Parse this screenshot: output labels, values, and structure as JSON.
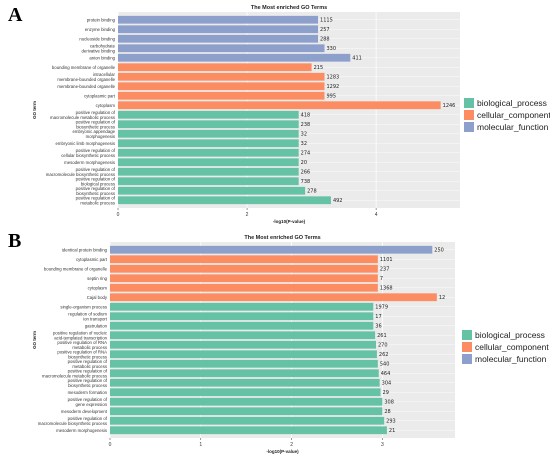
{
  "colors": {
    "biological_process": "#66c2a5",
    "cellular_component": "#fc8d62",
    "molecular_function": "#8da0cb",
    "panel_bg": "#ebebeb",
    "grid": "#ffffff"
  },
  "chart_data": [
    {
      "panel_letter": "A",
      "type": "bar",
      "orientation": "horizontal",
      "title": "The Most enriched GO Terms",
      "xlabel": "-log10(P-value)",
      "ylabel": "GO term",
      "xlim": [
        0,
        5.3
      ],
      "xticks": [
        0,
        2,
        4
      ],
      "grid": true,
      "legend_position": "right",
      "legend": [
        {
          "name": "biological_process",
          "color": "#66c2a5"
        },
        {
          "name": "cellular_component",
          "color": "#fc8d62"
        },
        {
          "name": "molecular_function",
          "color": "#8da0cb"
        }
      ],
      "bars": [
        {
          "term": "protein binding",
          "value": 3.1,
          "count": "1115",
          "category": "molecular_function"
        },
        {
          "term": "enzyme binding",
          "value": 3.1,
          "count": "257",
          "category": "molecular_function"
        },
        {
          "term": "nucleoside binding",
          "value": 3.1,
          "count": "288",
          "category": "molecular_function"
        },
        {
          "term": "carbohydrate derivative binding",
          "value": 3.2,
          "count": "330",
          "category": "molecular_function"
        },
        {
          "term": "anion binding",
          "value": 3.6,
          "count": "411",
          "category": "molecular_function"
        },
        {
          "term": "bounding membrane of organelle",
          "value": 3.0,
          "count": "215",
          "category": "cellular_component"
        },
        {
          "term": "intracellular membrane-bounded organelle",
          "value": 3.2,
          "count": "1283",
          "category": "cellular_component"
        },
        {
          "term": "membrane-bounded organelle",
          "value": 3.2,
          "count": "1292",
          "category": "cellular_component"
        },
        {
          "term": "cytoplasmic part",
          "value": 3.2,
          "count": "995",
          "category": "cellular_component"
        },
        {
          "term": "cytoplasm",
          "value": 5.0,
          "count": "1246",
          "category": "cellular_component"
        },
        {
          "term": "positive regulation of macromolecule metabolic process",
          "value": 2.8,
          "count": "418",
          "category": "biological_process"
        },
        {
          "term": "positive regulation of biosynthetic process",
          "value": 2.8,
          "count": "238",
          "category": "biological_process"
        },
        {
          "term": "embryonic appendage morphogenesis",
          "value": 2.8,
          "count": "32",
          "category": "biological_process"
        },
        {
          "term": "embryonic limb morphogenesis",
          "value": 2.8,
          "count": "32",
          "category": "biological_process"
        },
        {
          "term": "positive regulation of cellular biosynthetic process",
          "value": 2.8,
          "count": "274",
          "category": "biological_process"
        },
        {
          "term": "mesoderm morphogenesis",
          "value": 2.8,
          "count": "20",
          "category": "biological_process"
        },
        {
          "term": "positive regulation of macromolecule biosynthetic process",
          "value": 2.8,
          "count": "266",
          "category": "biological_process"
        },
        {
          "term": "positive regulation of biological process",
          "value": 2.8,
          "count": "738",
          "category": "biological_process"
        },
        {
          "term": "positive regulation of biosynthetic process",
          "value": 2.9,
          "count": "278",
          "category": "biological_process"
        },
        {
          "term": "positive regulation of metabolic process",
          "value": 3.3,
          "count": "492",
          "category": "biological_process"
        }
      ]
    },
    {
      "panel_letter": "B",
      "type": "bar",
      "orientation": "horizontal",
      "title": "The Most enriched GO Terms",
      "xlabel": "-log10(P-value)",
      "ylabel": "GO term",
      "xlim": [
        0,
        3.8
      ],
      "xticks": [
        0,
        1,
        2,
        3
      ],
      "grid": true,
      "legend_position": "right",
      "legend": [
        {
          "name": "biological_process",
          "color": "#66c2a5"
        },
        {
          "name": "cellular_component",
          "color": "#fc8d62"
        },
        {
          "name": "molecular_function",
          "color": "#8da0cb"
        }
      ],
      "bars": [
        {
          "term": "identical protein binding",
          "value": 3.55,
          "count": "250",
          "category": "molecular_function"
        },
        {
          "term": "cytoplasmic part",
          "value": 2.95,
          "count": "1101",
          "category": "cellular_component"
        },
        {
          "term": "bounding membrane of organelle",
          "value": 2.95,
          "count": "237",
          "category": "cellular_component"
        },
        {
          "term": "septin ring",
          "value": 2.95,
          "count": "7",
          "category": "cellular_component"
        },
        {
          "term": "cytoplasm",
          "value": 2.95,
          "count": "1368",
          "category": "cellular_component"
        },
        {
          "term": "Cajal body",
          "value": 3.6,
          "count": "12",
          "category": "cellular_component"
        },
        {
          "term": "single-organism process",
          "value": 2.9,
          "count": "1979",
          "category": "biological_process"
        },
        {
          "term": "regulation of sodium ion transport",
          "value": 2.9,
          "count": "17",
          "category": "biological_process"
        },
        {
          "term": "gastrulation",
          "value": 2.9,
          "count": "36",
          "category": "biological_process"
        },
        {
          "term": "positive regulation of nucleic acid-templated transcription",
          "value": 2.92,
          "count": "261",
          "category": "biological_process"
        },
        {
          "term": "positive regulation of RNA metabolic process",
          "value": 2.93,
          "count": "270",
          "category": "biological_process"
        },
        {
          "term": "positive regulation of RNA biosynthetic process",
          "value": 2.94,
          "count": "262",
          "category": "biological_process"
        },
        {
          "term": "positive regulation of metabolic process",
          "value": 2.95,
          "count": "540",
          "category": "biological_process"
        },
        {
          "term": "positive regulation of macromolecule metabolic process",
          "value": 2.96,
          "count": "464",
          "category": "biological_process"
        },
        {
          "term": "positive regulation of biosynthetic process",
          "value": 2.97,
          "count": "304",
          "category": "biological_process"
        },
        {
          "term": "mesoderm formation",
          "value": 2.98,
          "count": "29",
          "category": "biological_process"
        },
        {
          "term": "positive regulation of gene expression",
          "value": 3.0,
          "count": "308",
          "category": "biological_process"
        },
        {
          "term": "mesoderm development",
          "value": 3.0,
          "count": "28",
          "category": "biological_process"
        },
        {
          "term": "positive regulation of macromolecule biosynthetic process",
          "value": 3.02,
          "count": "293",
          "category": "biological_process"
        },
        {
          "term": "mesoderm morphogenesis",
          "value": 3.05,
          "count": "21",
          "category": "biological_process"
        }
      ]
    }
  ]
}
